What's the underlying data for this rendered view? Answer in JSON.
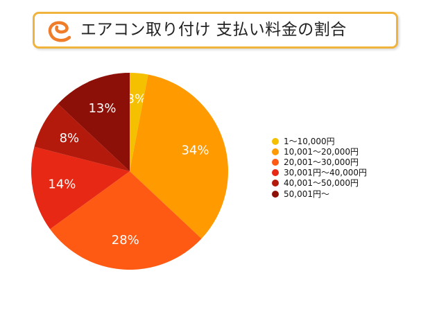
{
  "header": {
    "title": "エアコン取り付け 支払い料金の割合",
    "logo_icon": "orange-c-logo-icon",
    "border_color": "#f0b43c",
    "logo_color": "#ef7d2a"
  },
  "chart_data": {
    "type": "pie",
    "title": "エアコン取り付け 支払い料金の割合",
    "categories": [
      "1〜10,000円",
      "10,001〜20,000円",
      "20,001〜30,000円",
      "30,001円〜40,000円",
      "40,001〜50,000円",
      "50,001円〜"
    ],
    "values": [
      3,
      34,
      28,
      14,
      8,
      13
    ],
    "labels": [
      "3%",
      "34%",
      "28%",
      "14%",
      "8%",
      "13%"
    ],
    "colors": [
      "#f5c000",
      "#ff9a00",
      "#ff5a14",
      "#e62814",
      "#b41a0c",
      "#8c1008"
    ],
    "start_angle_deg": 0,
    "direction": "clockwise",
    "legend_position": "right"
  }
}
